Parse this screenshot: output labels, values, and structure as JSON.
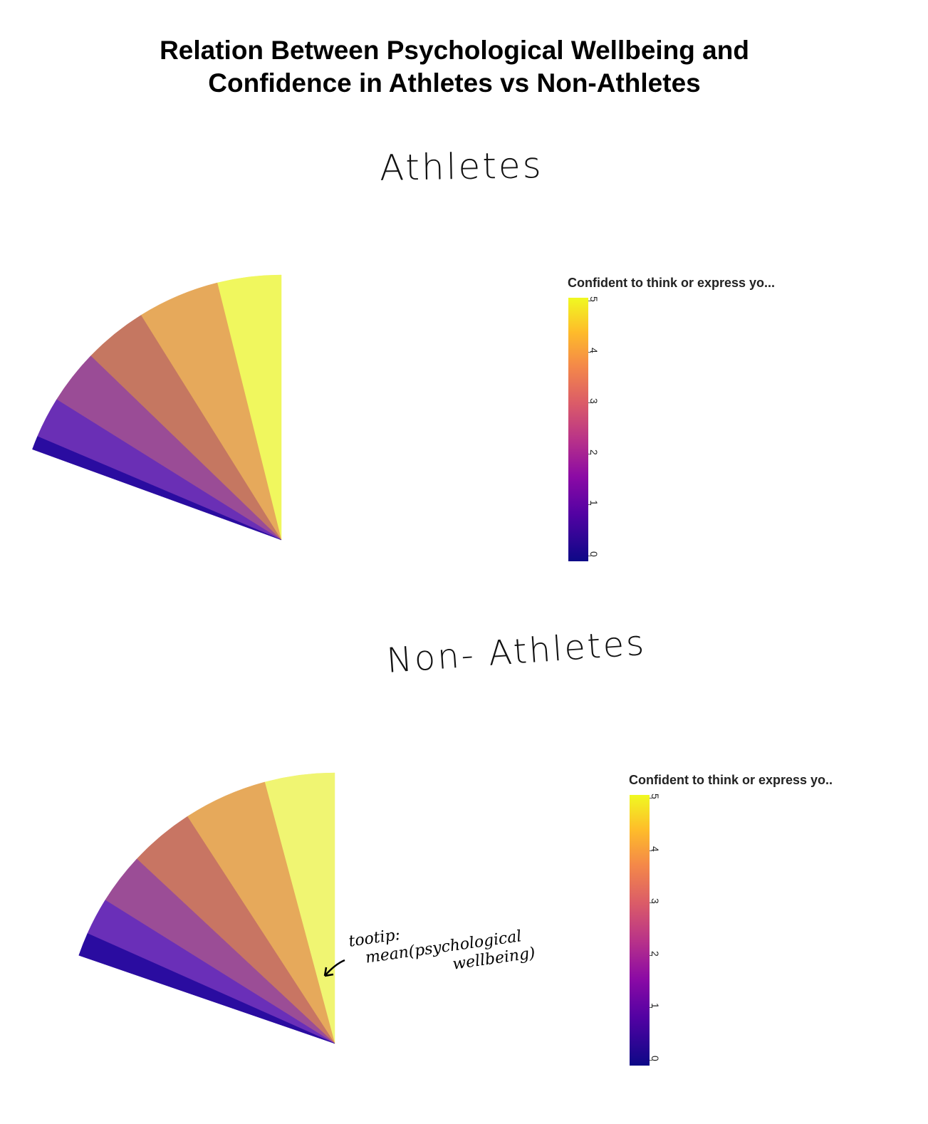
{
  "title_line1": "Relation Between Psychological Wellbeing and",
  "title_line2": "Confidence in Athletes vs Non-Athletes",
  "chart_data": [
    {
      "type": "pie",
      "panel_label": "Athletes",
      "legend_title": "Confident to think or express yo...",
      "colorbar_ticks": [
        "0",
        "1",
        "2",
        "3",
        "4",
        "5"
      ],
      "colorscale": [
        "#0d0887",
        "#5302a3",
        "#8b0aa5",
        "#b83289",
        "#db5c68",
        "#f48849",
        "#febc2a",
        "#f0f921"
      ],
      "slices": [
        {
          "confidence": 5,
          "color": "#f0f75e"
        },
        {
          "confidence": 4,
          "color": "#e6a95b"
        },
        {
          "confidence": 3,
          "color": "#c57761"
        },
        {
          "confidence": 2,
          "color": "#9a4c96"
        },
        {
          "confidence": 1,
          "color": "#6a2fb5"
        },
        {
          "confidence": 0,
          "color": "#2a0ca0"
        }
      ],
      "slice_angles_deg": [
        14,
        18,
        14,
        12,
        9,
        3
      ]
    },
    {
      "type": "pie",
      "panel_label": "Non- Athletes",
      "legend_title": "Confident to think or express yo..",
      "colorbar_ticks": [
        "0",
        "1",
        "2",
        "3",
        "4",
        "5"
      ],
      "colorscale": [
        "#0d0887",
        "#5302a3",
        "#8b0aa5",
        "#b83289",
        "#db5c68",
        "#f48849",
        "#febc2a",
        "#f0f921"
      ],
      "slices": [
        {
          "confidence": 5,
          "color": "#f0f572"
        },
        {
          "confidence": 4,
          "color": "#e6a95b"
        },
        {
          "confidence": 3,
          "color": "#c87563"
        },
        {
          "confidence": 2,
          "color": "#9b4d96"
        },
        {
          "confidence": 1,
          "color": "#6a2fb8"
        },
        {
          "confidence": 0,
          "color": "#2a0ca0"
        }
      ],
      "slice_angles_deg": [
        15,
        18,
        14,
        11,
        8,
        5
      ]
    }
  ],
  "annotation": {
    "line1": "tootip:",
    "line2": "mean(psychological",
    "line3": "wellbeing)"
  }
}
